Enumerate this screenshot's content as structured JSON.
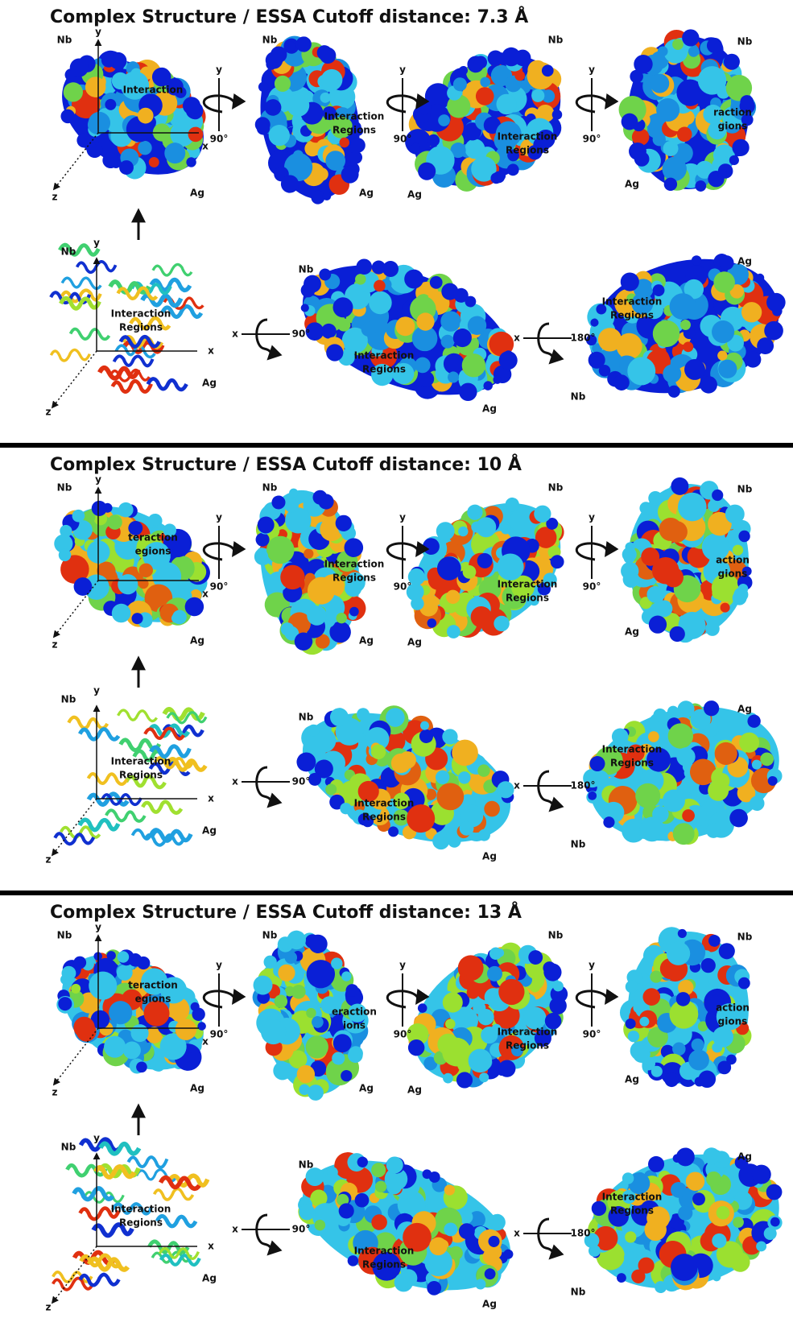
{
  "panels": [
    {
      "title": "Complex Structure / ESSA Cutoff distance: 7.3 Å",
      "views": [
        {
          "nb": "Nb",
          "y": "y",
          "x": "x",
          "z": "z",
          "interaction": [
            "Interaction"
          ],
          "ag": "Ag"
        },
        {
          "axis": "y",
          "angle": "90°",
          "nb": "Nb",
          "interaction": [
            "Interaction",
            "Regions"
          ],
          "ag": "Ag"
        },
        {
          "axis": "y",
          "angle": "90°",
          "nb": "Nb",
          "interaction": [
            "Interaction",
            "Regions"
          ],
          "ag": "Ag"
        },
        {
          "axis": "y",
          "angle": "90°",
          "nb": "Nb",
          "interaction": [
            "raction",
            "gions"
          ],
          "ag": "Ag"
        },
        {
          "nb": "Nb",
          "y": "y",
          "x": "x",
          "z": "z",
          "interaction": [
            "Interaction",
            "Regions"
          ],
          "ag": "Ag"
        },
        {
          "axis": "x",
          "angle": "90°",
          "nb": "Nb",
          "interaction": [
            "Interaction",
            "Regions"
          ],
          "ag": "Ag"
        },
        {
          "axis": "x",
          "angle": "180°",
          "ag": "Ag",
          "interaction": [
            "Interaction",
            "Regions"
          ],
          "nb": "Nb"
        }
      ]
    },
    {
      "title": "Complex Structure / ESSA Cutoff distance: 10 Å",
      "views": [
        {
          "nb": "Nb",
          "y": "y",
          "x": "x",
          "z": "z",
          "interaction": [
            "teraction",
            "egions"
          ],
          "ag": "Ag"
        },
        {
          "axis": "y",
          "angle": "90°",
          "nb": "Nb",
          "interaction": [
            "Interaction",
            "Regions"
          ],
          "ag": "Ag"
        },
        {
          "axis": "y",
          "angle": "90°",
          "nb": "Nb",
          "interaction": [
            "Interaction",
            "Regions"
          ],
          "ag": "Ag"
        },
        {
          "axis": "y",
          "angle": "90°",
          "nb": "Nb",
          "interaction": [
            "action",
            "gions"
          ],
          "ag": "Ag"
        },
        {
          "nb": "Nb",
          "y": "y",
          "x": "x",
          "z": "z",
          "interaction": [
            "Interaction",
            "Regions"
          ],
          "ag": "Ag"
        },
        {
          "axis": "x",
          "angle": "90°",
          "nb": "Nb",
          "interaction": [
            "Interaction",
            "Regions"
          ],
          "ag": "Ag"
        },
        {
          "axis": "x",
          "angle": "180°",
          "ag": "Ag",
          "interaction": [
            "Interaction",
            "Regions"
          ],
          "nb": "Nb"
        }
      ]
    },
    {
      "title": "Complex Structure / ESSA Cutoff distance: 13 Å",
      "views": [
        {
          "nb": "Nb",
          "y": "y",
          "x": "x",
          "z": "z",
          "interaction": [
            "teraction",
            "egions"
          ],
          "ag": "Ag"
        },
        {
          "axis": "y",
          "angle": "90°",
          "nb": "Nb",
          "interaction": [
            "eraction",
            "ions"
          ],
          "ag": "Ag"
        },
        {
          "axis": "y",
          "angle": "90°",
          "nb": "Nb",
          "interaction": [
            "Interaction",
            "Regions"
          ],
          "ag": "Ag"
        },
        {
          "axis": "y",
          "angle": "90°",
          "nb": "Nb",
          "interaction": [
            "action",
            "gions"
          ],
          "ag": "Ag"
        },
        {
          "nb": "Nb",
          "y": "y",
          "x": "x",
          "z": "z",
          "interaction": [
            "Interaction",
            "Regions"
          ],
          "ag": "Ag"
        },
        {
          "axis": "x",
          "angle": "90°",
          "nb": "Nb",
          "interaction": [
            "Interaction",
            "Regions"
          ],
          "ag": "Ag"
        },
        {
          "axis": "x",
          "angle": "180°",
          "ag": "Ag",
          "interaction": [
            "Interaction",
            "Regions"
          ],
          "nb": "Nb"
        }
      ]
    }
  ]
}
